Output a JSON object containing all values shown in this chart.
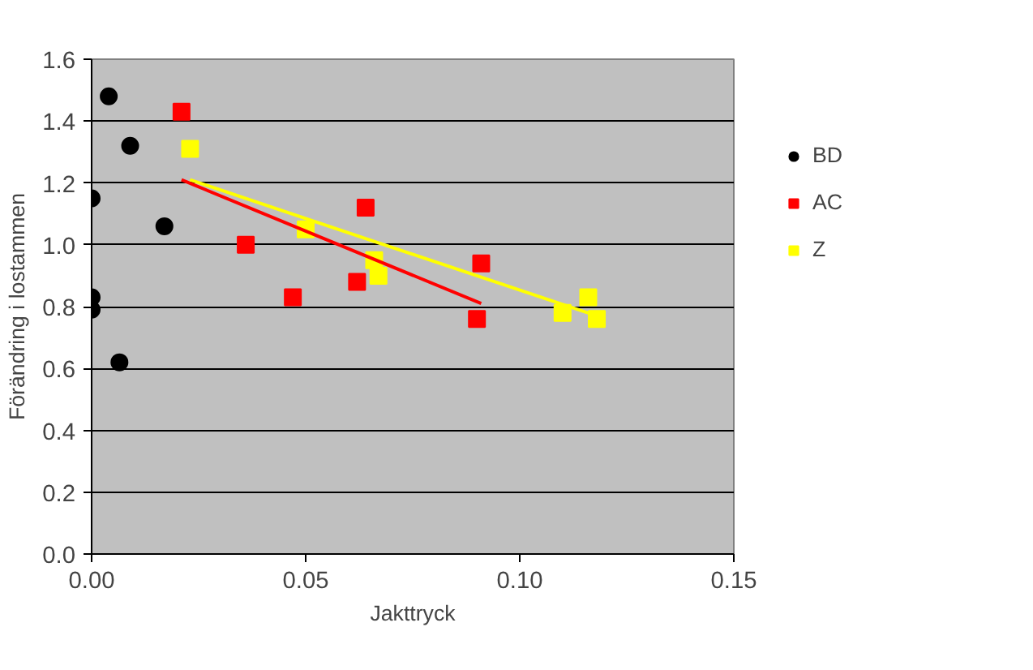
{
  "chart_data": {
    "type": "scatter",
    "xlabel": "Jakttryck",
    "ylabel": "Förändring i lostammen",
    "xlim": [
      0,
      0.15
    ],
    "ylim": [
      0,
      1.6
    ],
    "xticks": [
      {
        "value": 0,
        "label": "0.00"
      },
      {
        "value": 0.05,
        "label": "0.05"
      },
      {
        "value": 0.1,
        "label": "0.10"
      },
      {
        "value": 0.15,
        "label": "0.15"
      }
    ],
    "yticks": [
      {
        "value": 0,
        "label": "0.0"
      },
      {
        "value": 0.2,
        "label": "0.2"
      },
      {
        "value": 0.4,
        "label": "0.4"
      },
      {
        "value": 0.6,
        "label": "0.6"
      },
      {
        "value": 0.8,
        "label": "0.8"
      },
      {
        "value": 1.0,
        "label": "1.0"
      },
      {
        "value": 1.2,
        "label": "1.2"
      },
      {
        "value": 1.4,
        "label": "1.4"
      },
      {
        "value": 1.6,
        "label": "1.6"
      }
    ],
    "grid": "y",
    "legend": "right",
    "series": [
      {
        "name": "BD",
        "color": "#000000",
        "marker": "circle",
        "x": [
          0,
          0,
          0,
          0.004,
          0.009,
          0.017,
          0.0065
        ],
        "values": [
          1.15,
          0.83,
          0.79,
          1.48,
          1.32,
          1.06,
          0.62
        ]
      },
      {
        "name": "AC",
        "color": "#ff0000",
        "marker": "square",
        "x": [
          0.021,
          0.036,
          0.047,
          0.062,
          0.064,
          0.091,
          0.09
        ],
        "values": [
          1.43,
          1.0,
          0.83,
          0.88,
          1.12,
          0.94,
          0.76
        ]
      },
      {
        "name": "Z",
        "color": "#ffff00",
        "marker": "square",
        "x": [
          0.023,
          0.05,
          0.066,
          0.067,
          0.11,
          0.116,
          0.118
        ],
        "values": [
          1.31,
          1.05,
          0.95,
          0.9,
          0.78,
          0.83,
          0.76
        ]
      },
      {
        "type": "line",
        "color": "#ff0000",
        "marker": "none",
        "x": [
          0.021,
          0.091
        ],
        "values": [
          1.21,
          0.81
        ]
      },
      {
        "type": "line",
        "color": "#ffff00",
        "marker": "none",
        "x": [
          0.023,
          0.118
        ],
        "values": [
          1.21,
          0.77
        ]
      }
    ]
  }
}
